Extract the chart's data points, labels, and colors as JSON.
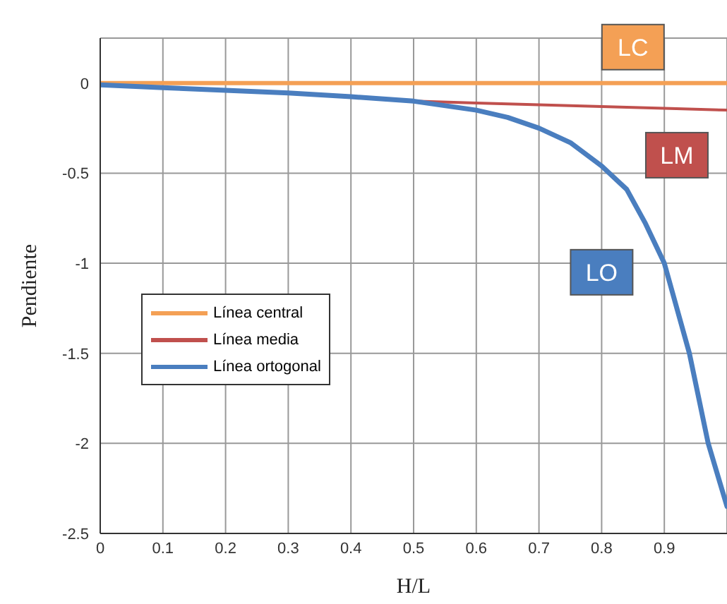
{
  "chart_data": {
    "type": "line",
    "xlabel": "H/L",
    "ylabel": "Pendiente",
    "xlim": [
      0,
      1
    ],
    "xticks": [
      0,
      0.1,
      0.2,
      0.3,
      0.4,
      0.5,
      0.6,
      0.7,
      0.8,
      0.9
    ],
    "ylim": [
      -2.5,
      0.25
    ],
    "yticks": [
      0,
      -0.5,
      -1,
      -1.5,
      -2,
      -2.5
    ],
    "grid": true,
    "legend": "left",
    "marker": "none",
    "line_style": "solid",
    "series": [
      {
        "name": "Línea central",
        "color": "#f4a055",
        "x": [
          0,
          0.2,
          0.4,
          0.6,
          0.8,
          1
        ],
        "values": [
          0,
          0,
          0,
          0,
          0,
          0
        ]
      },
      {
        "name": "Línea media",
        "color": "#c0504d",
        "x": [
          0.5,
          0.6,
          0.7,
          0.8,
          0.9,
          1
        ],
        "values": [
          -0.1,
          -0.11,
          -0.12,
          -0.13,
          -0.14,
          -0.15
        ]
      },
      {
        "name": "Línea ortogonal",
        "color": "#4a7ebf",
        "x": [
          0,
          0.1,
          0.2,
          0.3,
          0.4,
          0.5,
          0.6,
          0.65,
          0.7,
          0.75,
          0.8,
          0.84,
          0.87,
          0.9,
          0.94,
          0.97,
          1
        ],
        "values": [
          -0.01,
          -0.025,
          -0.04,
          -0.055,
          -0.075,
          -0.1,
          -0.15,
          -0.19,
          -0.25,
          -0.33,
          -0.46,
          -0.59,
          -0.78,
          -1,
          -1.5,
          -2,
          -2.35
        ]
      }
    ],
    "annotations": [
      {
        "text": "LC",
        "x": 0.85,
        "y": 0.2
      },
      {
        "text": "LM",
        "x": 0.92,
        "y": -0.4
      },
      {
        "text": "LO",
        "x": 0.8,
        "y": -1.05
      }
    ]
  }
}
